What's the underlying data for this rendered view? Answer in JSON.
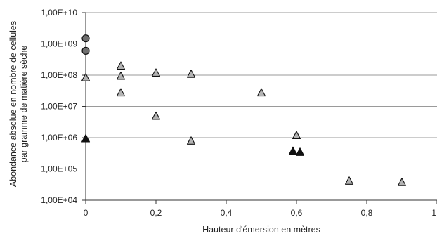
{
  "chart_data": {
    "type": "scatter",
    "title": "",
    "xlabel": "Hauteur d'émersion en mètres",
    "ylabel_lines": [
      "Abondance absolue en nombre de cellules",
      "par gramme de matière sèche"
    ],
    "xlim": [
      0,
      1
    ],
    "ylim": [
      10000,
      10000000000
    ],
    "yscale": "log",
    "x_ticks": [
      0,
      0.2,
      0.4,
      0.6,
      0.8,
      1
    ],
    "x_tick_labels": [
      "0",
      "0,2",
      "0,4",
      "0,6",
      "0,8",
      "1"
    ],
    "y_ticks": [
      10000,
      100000,
      1000000,
      10000000,
      100000000,
      1000000000,
      10000000000
    ],
    "y_tick_labels": [
      "1,00E+04",
      "1,00E+05",
      "1,00E+06",
      "1,00E+07",
      "1,00E+08",
      "1,00E+09",
      "1,00E+10"
    ],
    "grid": "horizontal",
    "legend": "none",
    "series": [
      {
        "marker": "circle",
        "color": "#6f6f6f",
        "points": [
          {
            "x": 0,
            "y": 1500000000
          },
          {
            "x": 0,
            "y": 600000000
          }
        ]
      },
      {
        "marker": "triangle",
        "color": "#b3b3b3",
        "points": [
          {
            "x": 0,
            "y": 85000000
          },
          {
            "x": 0.1,
            "y": 200000000
          },
          {
            "x": 0.1,
            "y": 95000000
          },
          {
            "x": 0.1,
            "y": 28000000
          },
          {
            "x": 0.2,
            "y": 120000000
          },
          {
            "x": 0.2,
            "y": 5000000
          },
          {
            "x": 0.3,
            "y": 110000000
          },
          {
            "x": 0.3,
            "y": 800000
          },
          {
            "x": 0.5,
            "y": 28000000
          },
          {
            "x": 0.6,
            "y": 1200000
          },
          {
            "x": 0.75,
            "y": 42000
          },
          {
            "x": 0.9,
            "y": 38000
          }
        ]
      },
      {
        "marker": "triangle",
        "color": "#111111",
        "points": [
          {
            "x": 0,
            "y": 950000
          },
          {
            "x": 0.59,
            "y": 380000
          },
          {
            "x": 0.61,
            "y": 350000
          }
        ]
      }
    ]
  }
}
